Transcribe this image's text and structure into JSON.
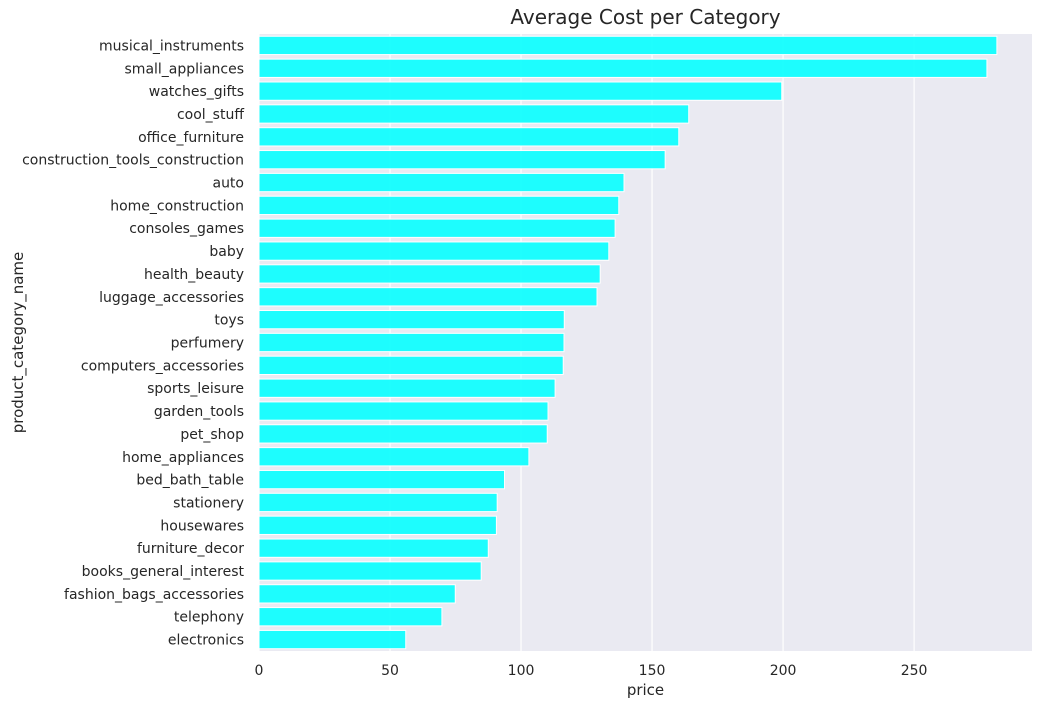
{
  "chart_data": {
    "type": "bar",
    "orientation": "horizontal",
    "title": "Average Cost per Category",
    "xlabel": "price",
    "ylabel": "product_category_name",
    "xlim": [
      0,
      295
    ],
    "xticks": [
      0,
      50,
      100,
      150,
      200,
      250
    ],
    "grid": true,
    "bar_color": "#00FFFF",
    "background_color": "#EAEAF2",
    "categories": [
      "musical_instruments",
      "small_appliances",
      "watches_gifts",
      "cool_stuff",
      "office_furniture",
      "construction_tools_construction",
      "auto",
      "home_construction",
      "consoles_games",
      "baby",
      "health_beauty",
      "luggage_accessories",
      "toys",
      "perfumery",
      "computers_accessories",
      "sports_leisure",
      "garden_tools",
      "pet_shop",
      "home_appliances",
      "bed_bath_table",
      "stationery",
      "housewares",
      "furniture_decor",
      "books_general_interest",
      "fashion_bags_accessories",
      "telephony",
      "electronics"
    ],
    "values": [
      281.6,
      277.8,
      199.5,
      164.0,
      160.2,
      155.0,
      139.3,
      137.3,
      135.9,
      133.5,
      130.2,
      129.0,
      116.5,
      116.4,
      116.1,
      113.0,
      110.3,
      110.0,
      103.0,
      93.7,
      90.9,
      90.6,
      87.5,
      84.8,
      74.9,
      69.8,
      56.0
    ]
  }
}
